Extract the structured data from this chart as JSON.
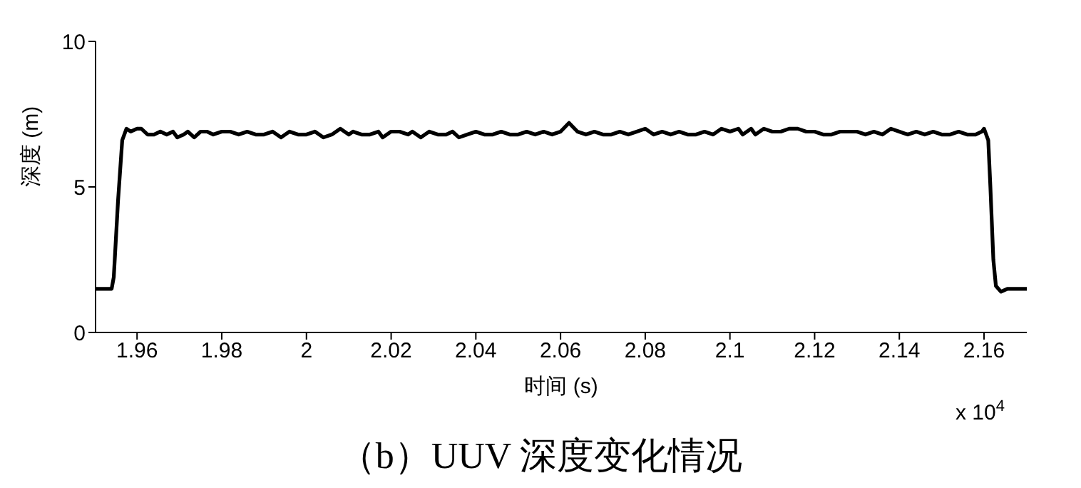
{
  "chart_data": {
    "type": "line",
    "title": "（b）UUV 深度变化情况",
    "xlabel": "时间 (s)",
    "ylabel": "深度 (m)",
    "annotations": [
      "x 10$^{4}$"
    ],
    "xlim": [
      1.9502,
      2.1701
    ],
    "xticks": [
      1.96,
      1.98,
      2,
      2.02,
      2.04,
      2.06,
      2.08,
      2.1,
      2.12,
      2.14,
      2.16
    ],
    "ylim": [
      0,
      10
    ],
    "yticks": [
      0,
      5,
      10
    ],
    "series": [
      {
        "color": "#000000",
        "x": [
          1.9502,
          1.954,
          1.9545,
          1.9555,
          1.9565,
          1.9575,
          1.9585,
          1.96,
          1.961,
          1.9625,
          1.964,
          1.9655,
          1.967,
          1.9685,
          1.9695,
          1.971,
          1.972,
          1.9735,
          1.975,
          1.9765,
          1.978,
          1.98,
          1.982,
          1.984,
          1.986,
          1.988,
          1.99,
          1.992,
          1.994,
          1.996,
          1.998,
          2.0,
          2.002,
          2.004,
          2.006,
          2.008,
          2.01,
          2.011,
          2.013,
          2.015,
          2.017,
          2.018,
          2.02,
          2.022,
          2.024,
          2.025,
          2.027,
          2.029,
          2.031,
          2.033,
          2.0345,
          2.036,
          2.038,
          2.04,
          2.042,
          2.044,
          2.046,
          2.048,
          2.05,
          2.052,
          2.054,
          2.056,
          2.058,
          2.06,
          2.062,
          2.064,
          2.066,
          2.068,
          2.07,
          2.072,
          2.074,
          2.076,
          2.078,
          2.08,
          2.082,
          2.084,
          2.086,
          2.088,
          2.09,
          2.092,
          2.094,
          2.096,
          2.098,
          2.1,
          2.102,
          2.103,
          2.105,
          2.106,
          2.108,
          2.11,
          2.112,
          2.114,
          2.116,
          2.118,
          2.12,
          2.122,
          2.124,
          2.126,
          2.128,
          2.13,
          2.132,
          2.134,
          2.136,
          2.138,
          2.14,
          2.142,
          2.144,
          2.146,
          2.148,
          2.15,
          2.152,
          2.154,
          2.156,
          2.158,
          2.1595,
          2.16,
          2.161,
          2.1615,
          2.1622,
          2.1628,
          2.164,
          2.1655,
          2.1701
        ],
        "values": [
          1.5,
          1.5,
          1.9,
          4.5,
          6.6,
          7.0,
          6.9,
          7.0,
          7.0,
          6.8,
          6.8,
          6.9,
          6.8,
          6.9,
          6.7,
          6.8,
          6.9,
          6.7,
          6.9,
          6.9,
          6.8,
          6.9,
          6.9,
          6.8,
          6.9,
          6.8,
          6.8,
          6.9,
          6.7,
          6.9,
          6.8,
          6.8,
          6.9,
          6.7,
          6.8,
          7.0,
          6.8,
          6.9,
          6.8,
          6.8,
          6.9,
          6.7,
          6.9,
          6.9,
          6.8,
          6.9,
          6.7,
          6.9,
          6.8,
          6.8,
          6.9,
          6.7,
          6.8,
          6.9,
          6.8,
          6.8,
          6.9,
          6.8,
          6.8,
          6.9,
          6.8,
          6.9,
          6.8,
          6.9,
          7.2,
          6.9,
          6.8,
          6.9,
          6.8,
          6.8,
          6.9,
          6.8,
          6.9,
          7.0,
          6.8,
          6.9,
          6.8,
          6.9,
          6.8,
          6.8,
          6.9,
          6.8,
          7.0,
          6.9,
          7.0,
          6.8,
          7.0,
          6.8,
          7.0,
          6.9,
          6.9,
          7.0,
          7.0,
          6.9,
          6.9,
          6.8,
          6.8,
          6.9,
          6.9,
          6.9,
          6.8,
          6.9,
          6.8,
          7.0,
          6.9,
          6.8,
          6.9,
          6.8,
          6.9,
          6.8,
          6.8,
          6.9,
          6.8,
          6.8,
          6.9,
          7.0,
          6.6,
          5.0,
          2.5,
          1.6,
          1.4,
          1.5,
          1.5
        ]
      }
    ]
  }
}
